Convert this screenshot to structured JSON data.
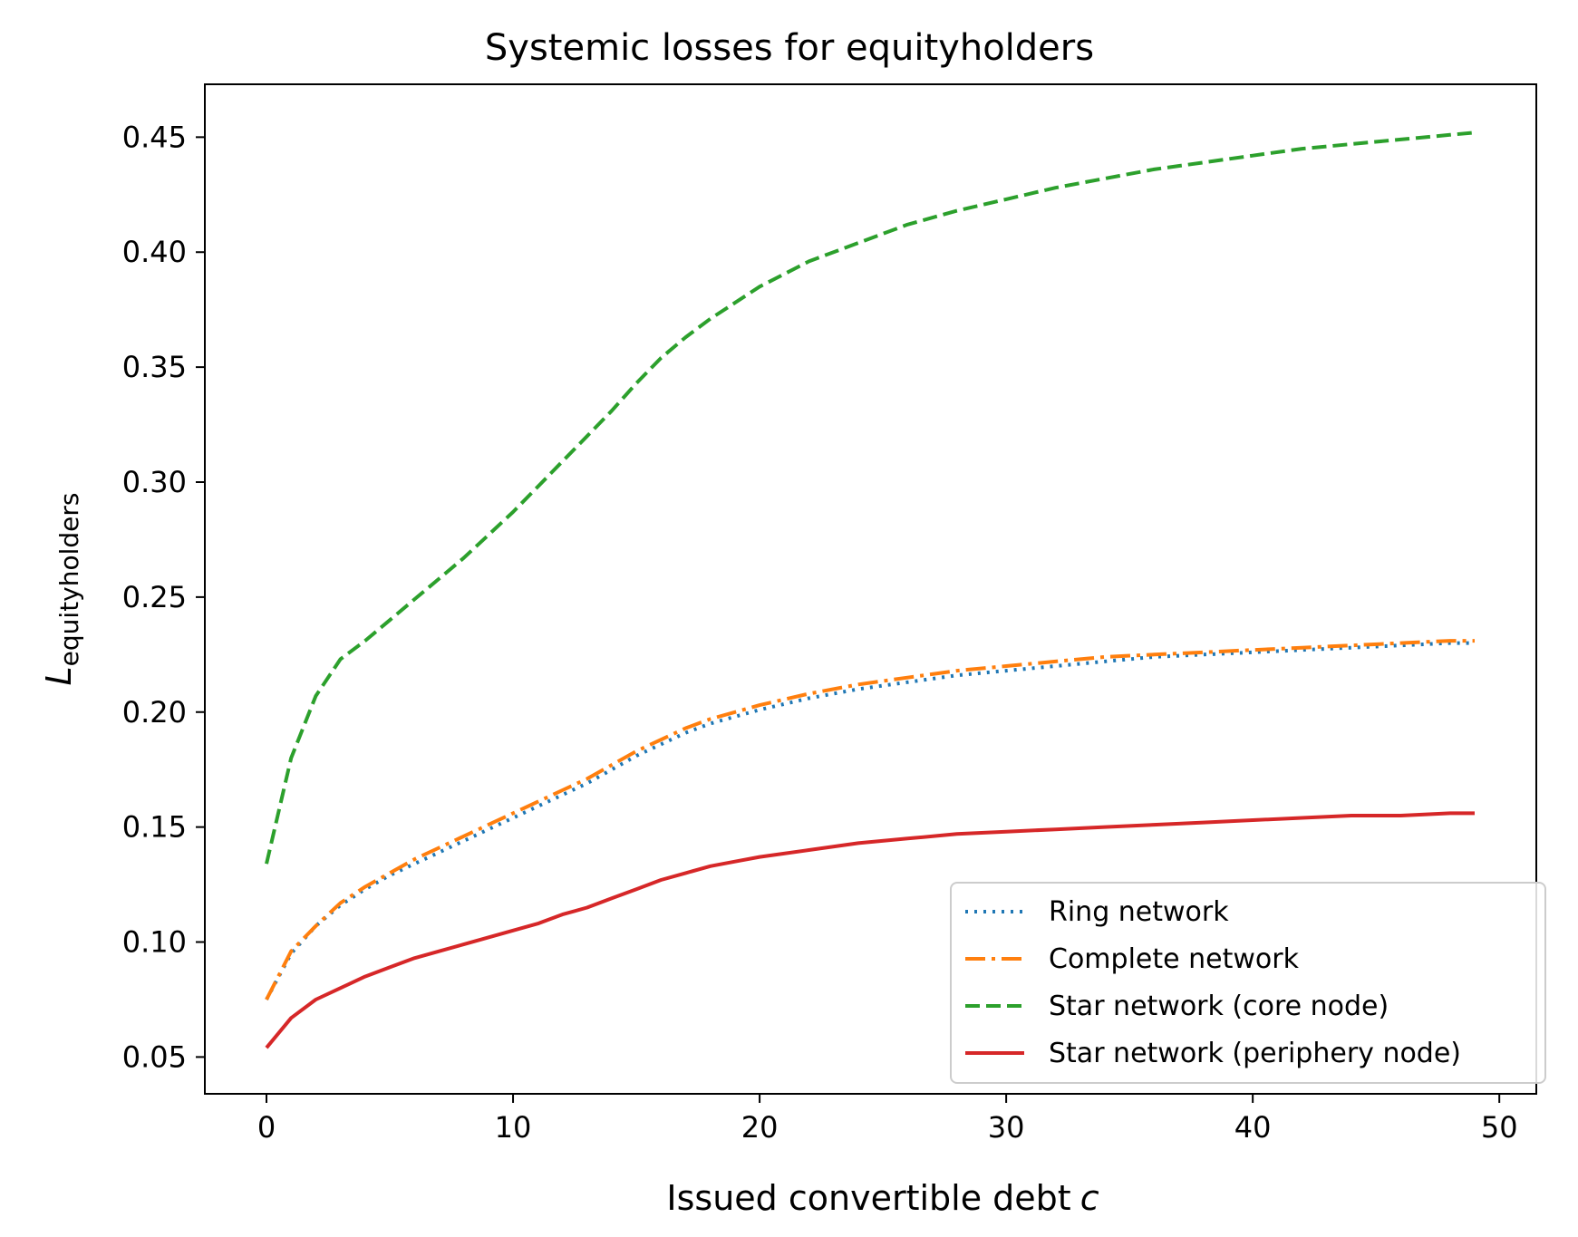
{
  "chart_data": {
    "type": "line",
    "title": "Systemic losses for equityholders",
    "xlabel": "Issued convertible debt",
    "xlabel_var": "c",
    "ylabel": "L",
    "ylabel_sub": "equityholders",
    "xlim": [
      -2.5,
      51.5
    ],
    "ylim": [
      0.034,
      0.473
    ],
    "xticks": [
      0,
      10,
      20,
      30,
      40,
      50
    ],
    "xtick_labels": [
      "0",
      "10",
      "20",
      "30",
      "40",
      "50"
    ],
    "yticks": [
      0.05,
      0.1,
      0.15,
      0.2,
      0.25,
      0.3,
      0.35,
      0.4,
      0.45
    ],
    "ytick_labels": [
      "0.05",
      "0.10",
      "0.15",
      "0.20",
      "0.25",
      "0.30",
      "0.35",
      "0.40",
      "0.45"
    ],
    "grid": false,
    "legend_position": "lower right",
    "series": [
      {
        "name": "Ring network",
        "color": "#1f77b4",
        "style": "dotted",
        "x": [
          0,
          1,
          2,
          3,
          4,
          5,
          6,
          7,
          8,
          9,
          10,
          11,
          12,
          13,
          14,
          15,
          16,
          17,
          18,
          19,
          20,
          22,
          24,
          26,
          28,
          30,
          32,
          34,
          36,
          38,
          40,
          42,
          44,
          46,
          48,
          49
        ],
        "values": [
          0.075,
          0.095,
          0.107,
          0.116,
          0.123,
          0.129,
          0.134,
          0.139,
          0.144,
          0.149,
          0.154,
          0.159,
          0.164,
          0.169,
          0.175,
          0.181,
          0.186,
          0.191,
          0.195,
          0.198,
          0.201,
          0.206,
          0.21,
          0.213,
          0.216,
          0.218,
          0.22,
          0.222,
          0.224,
          0.225,
          0.226,
          0.227,
          0.228,
          0.229,
          0.23,
          0.23
        ]
      },
      {
        "name": "Complete network",
        "color": "#ff7f0e",
        "style": "dashdot",
        "x": [
          0,
          1,
          2,
          3,
          4,
          5,
          6,
          7,
          8,
          9,
          10,
          11,
          12,
          13,
          14,
          15,
          16,
          17,
          18,
          19,
          20,
          22,
          24,
          26,
          28,
          30,
          32,
          34,
          36,
          38,
          40,
          42,
          44,
          46,
          48,
          49
        ],
        "values": [
          0.075,
          0.096,
          0.107,
          0.117,
          0.124,
          0.13,
          0.136,
          0.141,
          0.146,
          0.151,
          0.156,
          0.161,
          0.166,
          0.171,
          0.177,
          0.183,
          0.188,
          0.193,
          0.197,
          0.2,
          0.203,
          0.208,
          0.212,
          0.215,
          0.218,
          0.22,
          0.222,
          0.224,
          0.225,
          0.226,
          0.227,
          0.228,
          0.229,
          0.23,
          0.231,
          0.231
        ]
      },
      {
        "name": "Star network (core node)",
        "color": "#2ca02c",
        "style": "dashed",
        "x": [
          0,
          1,
          2,
          3,
          4,
          5,
          6,
          7,
          8,
          9,
          10,
          11,
          12,
          13,
          14,
          15,
          16,
          17,
          18,
          19,
          20,
          22,
          24,
          26,
          28,
          30,
          32,
          34,
          36,
          38,
          40,
          42,
          44,
          46,
          48,
          49
        ],
        "values": [
          0.134,
          0.18,
          0.207,
          0.223,
          0.231,
          0.24,
          0.249,
          0.258,
          0.267,
          0.277,
          0.287,
          0.298,
          0.309,
          0.32,
          0.331,
          0.343,
          0.354,
          0.363,
          0.371,
          0.378,
          0.385,
          0.396,
          0.404,
          0.412,
          0.418,
          0.423,
          0.428,
          0.432,
          0.436,
          0.439,
          0.442,
          0.445,
          0.447,
          0.449,
          0.451,
          0.452
        ]
      },
      {
        "name": "Star network (periphery node)",
        "color": "#d62728",
        "style": "solid",
        "x": [
          0,
          1,
          2,
          3,
          4,
          5,
          6,
          7,
          8,
          9,
          10,
          11,
          12,
          13,
          14,
          15,
          16,
          17,
          18,
          19,
          20,
          22,
          24,
          26,
          28,
          30,
          32,
          34,
          36,
          38,
          40,
          42,
          44,
          46,
          48,
          49
        ],
        "values": [
          0.054,
          0.067,
          0.075,
          0.08,
          0.085,
          0.089,
          0.093,
          0.096,
          0.099,
          0.102,
          0.105,
          0.108,
          0.112,
          0.115,
          0.119,
          0.123,
          0.127,
          0.13,
          0.133,
          0.135,
          0.137,
          0.14,
          0.143,
          0.145,
          0.147,
          0.148,
          0.149,
          0.15,
          0.151,
          0.152,
          0.153,
          0.154,
          0.155,
          0.155,
          0.156,
          0.156
        ]
      }
    ]
  }
}
